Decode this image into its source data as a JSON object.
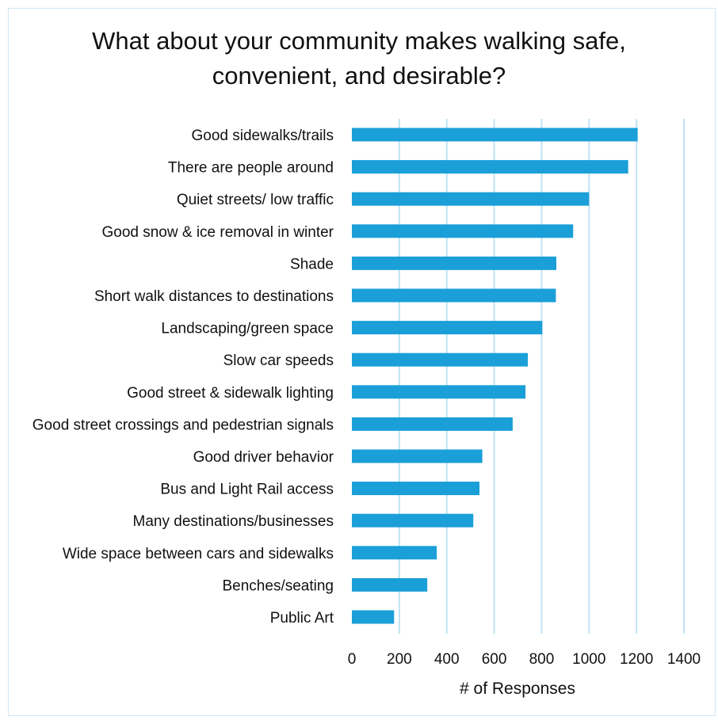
{
  "chart_data": {
    "type": "bar",
    "orientation": "horizontal",
    "title_lines": [
      "What about your community makes walking safe,",
      "convenient, and desirable?"
    ],
    "xlabel": "# of Responses",
    "ylabel": "",
    "xlim": [
      0,
      1400
    ],
    "xticks": [
      0,
      200,
      400,
      600,
      800,
      1000,
      1200,
      1400
    ],
    "grid": true,
    "bar_color": "#1a9fd8",
    "grid_color": "#bfe3f3",
    "categories": [
      "Good sidewalks/trails",
      "There are people around",
      "Quiet streets/ low traffic",
      "Good snow & ice removal in winter",
      "Shade",
      "Short walk distances to destinations",
      "Landscaping/green space",
      "Slow car speeds",
      "Good street & sidewalk lighting",
      "Good street crossings and pedestrian signals",
      "Good driver behavior",
      "Bus and Light Rail access",
      "Many destinations/businesses",
      "Wide space between cars and sidewalks",
      "Benches/seating",
      "Public Art"
    ],
    "values": [
      1205,
      1165,
      1000,
      933,
      862,
      860,
      803,
      742,
      732,
      678,
      550,
      538,
      512,
      358,
      318,
      178
    ]
  }
}
